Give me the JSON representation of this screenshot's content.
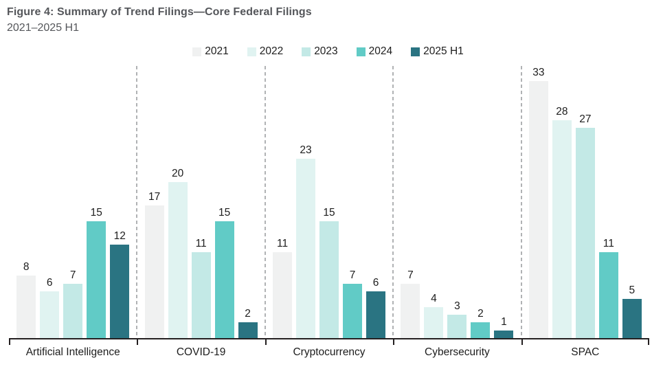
{
  "figure": {
    "title": "Figure 4: Summary of Trend Filings—Core Federal Filings",
    "subtitle": "2021–2025 H1"
  },
  "chart_data": {
    "type": "bar",
    "title": "Figure 4: Summary of Trend Filings—Core Federal Filings",
    "subtitle": "2021–2025 H1",
    "categories": [
      "Artificial Intelligence",
      "COVID-19",
      "Cryptocurrency",
      "Cybersecurity",
      "SPAC"
    ],
    "series": [
      {
        "name": "2021",
        "color": "#f0f1f1",
        "values": [
          8,
          17,
          11,
          7,
          33
        ]
      },
      {
        "name": "2022",
        "color": "#e0f3f1",
        "values": [
          6,
          20,
          23,
          4,
          28
        ]
      },
      {
        "name": "2023",
        "color": "#c3e9e6",
        "values": [
          7,
          11,
          15,
          3,
          27
        ]
      },
      {
        "name": "2024",
        "color": "#61cbc6",
        "values": [
          15,
          15,
          7,
          2,
          11
        ]
      },
      {
        "name": "2025 H1",
        "color": "#2a7482",
        "values": [
          12,
          2,
          6,
          1,
          5
        ]
      }
    ],
    "ylim": [
      0,
      33
    ],
    "grid": false,
    "bar_value_labels": true,
    "legend_position": "top-center",
    "group_dividers": "dashed",
    "axis_color": "#231f20",
    "divider_color": "#b0b2b4",
    "text_color": "#1c1c1c",
    "title_color": "#54565a"
  }
}
